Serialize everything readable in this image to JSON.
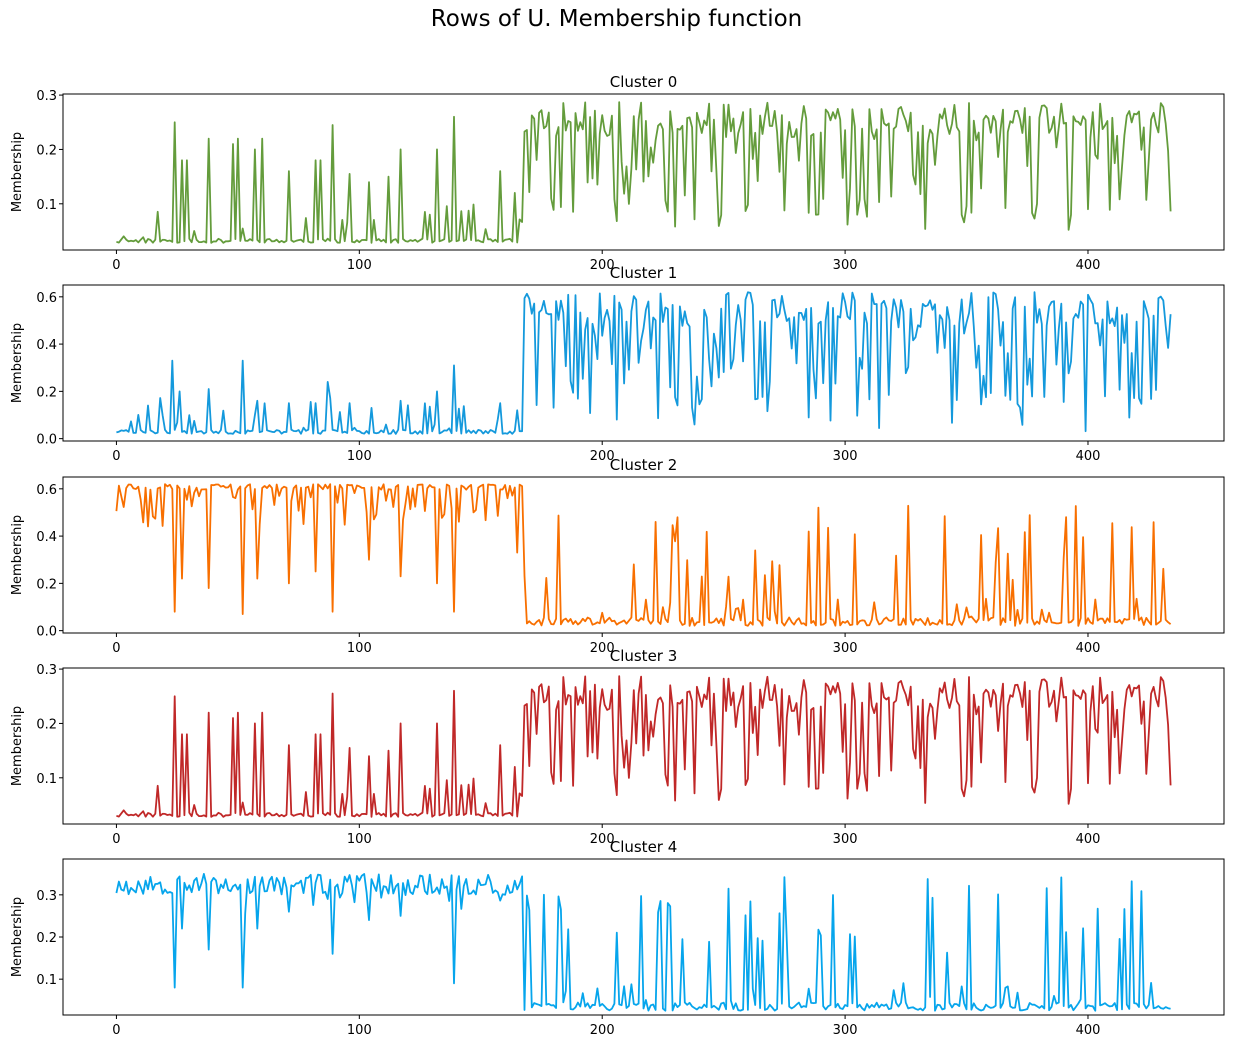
{
  "suptitle": "Rows of U. Membership function",
  "chart_data": [
    {
      "type": "line",
      "title": "Cluster 0",
      "ylabel": "Membership",
      "color": "#649c3c",
      "xlim": [
        -22,
        456
      ],
      "ylim": [
        0.015,
        0.302
      ],
      "xticks": [
        0,
        100,
        200,
        300,
        400
      ],
      "xtick_labels": [
        "0",
        "100",
        "200",
        "300",
        "400"
      ],
      "yticks": [
        0.1,
        0.2,
        0.3
      ],
      "ytick_labels": [
        "0.1",
        "0.2",
        "0.3"
      ],
      "kind": "low",
      "lo": 0.028,
      "hi": 0.287,
      "dip": 0.045,
      "seed": 11,
      "x_range": [
        0,
        434
      ],
      "spikes": [
        [
          24,
          0.25
        ],
        [
          27,
          0.18
        ],
        [
          29,
          0.18
        ],
        [
          38,
          0.22
        ],
        [
          48,
          0.21
        ],
        [
          50,
          0.22
        ],
        [
          57,
          0.2
        ],
        [
          60,
          0.22
        ],
        [
          71,
          0.16
        ],
        [
          82,
          0.18
        ],
        [
          84,
          0.18
        ],
        [
          89,
          0.245
        ],
        [
          96,
          0.155
        ],
        [
          104,
          0.14
        ],
        [
          112,
          0.15
        ],
        [
          117,
          0.2
        ],
        [
          132,
          0.2
        ],
        [
          139,
          0.26
        ],
        [
          158,
          0.16
        ],
        [
          164,
          0.12
        ]
      ]
    },
    {
      "type": "line",
      "title": "Cluster 1",
      "ylabel": "Membership",
      "color": "#1499dc",
      "xlim": [
        -22,
        456
      ],
      "ylim": [
        -0.01,
        0.65
      ],
      "xticks": [
        0,
        100,
        200,
        300,
        400
      ],
      "xtick_labels": [
        "0",
        "100",
        "200",
        "300",
        "400"
      ],
      "yticks": [
        0.0,
        0.2,
        0.4,
        0.6
      ],
      "ytick_labels": [
        "0.0",
        "0.2",
        "0.4",
        "0.6"
      ],
      "kind": "low",
      "lo": 0.02,
      "hi": 0.62,
      "dip": 0.03,
      "seed": 23,
      "x_range": [
        0,
        434
      ],
      "spikes": [
        [
          13,
          0.14
        ],
        [
          23,
          0.33
        ],
        [
          26,
          0.2
        ],
        [
          38,
          0.21
        ],
        [
          52,
          0.33
        ],
        [
          58,
          0.16
        ],
        [
          71,
          0.15
        ],
        [
          82,
          0.15
        ],
        [
          87,
          0.24
        ],
        [
          96,
          0.15
        ],
        [
          105,
          0.13
        ],
        [
          117,
          0.16
        ],
        [
          132,
          0.2
        ],
        [
          139,
          0.31
        ],
        [
          158,
          0.15
        ],
        [
          165,
          0.12
        ]
      ]
    },
    {
      "type": "line",
      "title": "Cluster 2",
      "ylabel": "Membership",
      "color": "#f86f00",
      "xlim": [
        -22,
        456
      ],
      "ylim": [
        -0.01,
        0.65
      ],
      "xticks": [
        0,
        100,
        200,
        300,
        400
      ],
      "xtick_labels": [
        "0",
        "100",
        "200",
        "300",
        "400"
      ],
      "yticks": [
        0.0,
        0.2,
        0.4,
        0.6
      ],
      "ytick_labels": [
        "0.0",
        "0.2",
        "0.4",
        "0.6"
      ],
      "kind": "high",
      "lo": 0.02,
      "hi": 0.62,
      "dip": 0.03,
      "seed": 37,
      "x_range": [
        0,
        434
      ],
      "spikes": [
        [
          24,
          0.08
        ],
        [
          27,
          0.22
        ],
        [
          38,
          0.18
        ],
        [
          52,
          0.07
        ],
        [
          58,
          0.22
        ],
        [
          71,
          0.2
        ],
        [
          82,
          0.25
        ],
        [
          89,
          0.08
        ],
        [
          104,
          0.3
        ],
        [
          117,
          0.23
        ],
        [
          132,
          0.2
        ],
        [
          139,
          0.08
        ],
        [
          165,
          0.33
        ]
      ]
    },
    {
      "type": "line",
      "title": "Cluster 3",
      "ylabel": "Membership",
      "color": "#c02828",
      "xlim": [
        -22,
        456
      ],
      "ylim": [
        0.015,
        0.302
      ],
      "xticks": [
        0,
        100,
        200,
        300,
        400
      ],
      "xtick_labels": [
        "0",
        "100",
        "200",
        "300",
        "400"
      ],
      "yticks": [
        0.1,
        0.2,
        0.3
      ],
      "ytick_labels": [
        "0.1",
        "0.2",
        "0.3"
      ],
      "kind": "low",
      "lo": 0.028,
      "hi": 0.287,
      "dip": 0.045,
      "seed": 11,
      "x_range": [
        0,
        434
      ],
      "spikes": [
        [
          24,
          0.25
        ],
        [
          27,
          0.18
        ],
        [
          29,
          0.18
        ],
        [
          38,
          0.22
        ],
        [
          48,
          0.21
        ],
        [
          50,
          0.22
        ],
        [
          57,
          0.2
        ],
        [
          60,
          0.22
        ],
        [
          71,
          0.16
        ],
        [
          82,
          0.18
        ],
        [
          84,
          0.18
        ],
        [
          89,
          0.255
        ],
        [
          96,
          0.155
        ],
        [
          104,
          0.14
        ],
        [
          112,
          0.15
        ],
        [
          117,
          0.2
        ],
        [
          132,
          0.2
        ],
        [
          139,
          0.26
        ],
        [
          158,
          0.16
        ],
        [
          164,
          0.12
        ]
      ]
    },
    {
      "type": "line",
      "title": "Cluster 4",
      "ylabel": "Membership",
      "color": "#06a5ec",
      "xlim": [
        -22,
        456
      ],
      "ylim": [
        0.015,
        0.385
      ],
      "xticks": [
        0,
        100,
        200,
        300,
        400
      ],
      "xtick_labels": [
        "0",
        "100",
        "200",
        "300",
        "400"
      ],
      "yticks": [
        0.1,
        0.2,
        0.3
      ],
      "ytick_labels": [
        "0.1",
        "0.2",
        "0.3"
      ],
      "kind": "high4",
      "lo": 0.025,
      "hi": 0.36,
      "dip": 0.03,
      "seed": 53,
      "x_range": [
        0,
        434
      ],
      "spikes": [
        [
          24,
          0.08
        ],
        [
          27,
          0.22
        ],
        [
          38,
          0.17
        ],
        [
          52,
          0.08
        ],
        [
          58,
          0.22
        ],
        [
          71,
          0.26
        ],
        [
          89,
          0.16
        ],
        [
          104,
          0.24
        ],
        [
          117,
          0.25
        ],
        [
          139,
          0.09
        ],
        [
          160,
          0.3
        ]
      ]
    }
  ]
}
